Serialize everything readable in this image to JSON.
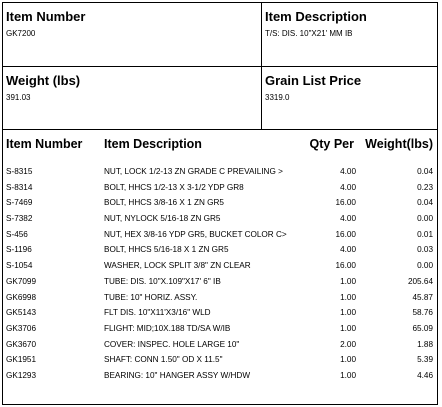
{
  "header": {
    "item_number_label": "Item Number",
    "item_number": "GK7200",
    "item_description_label": "Item Description",
    "item_description": "T/S: DIS. 10\"X21' MM IB",
    "weight_label": "Weight (lbs)",
    "weight": "391.03",
    "grain_list_price_label": "Grain List Price",
    "grain_list_price": "3319.0"
  },
  "table": {
    "columns": [
      "Item Number",
      "Item Description",
      "Qty Per",
      "Weight(lbs)"
    ],
    "rows": [
      {
        "item": "S-8315",
        "desc": "NUT, LOCK 1/2-13 ZN GRADE C PREVAILING >",
        "qty": "4.00",
        "weight": "0.04"
      },
      {
        "item": "S-8314",
        "desc": "BOLT, HHCS 1/2-13 X 3-1/2 YDP GR8",
        "qty": "4.00",
        "weight": "0.23"
      },
      {
        "item": "S-7469",
        "desc": "BOLT, HHCS 3/8-16 X 1 ZN GR5",
        "qty": "16.00",
        "weight": "0.04"
      },
      {
        "item": "S-7382",
        "desc": "NUT, NYLOCK 5/16-18 ZN GR5",
        "qty": "4.00",
        "weight": "0.00"
      },
      {
        "item": "S-456",
        "desc": "NUT, HEX 3/8-16 YDP GR5, BUCKET COLOR C>",
        "qty": "16.00",
        "weight": "0.01"
      },
      {
        "item": "S-1196",
        "desc": "BOLT, HHCS 5/16-18 X 1 ZN GR5",
        "qty": "4.00",
        "weight": "0.03"
      },
      {
        "item": "S-1054",
        "desc": "WASHER, LOCK SPLIT 3/8\" ZN CLEAR",
        "qty": "16.00",
        "weight": "0.00"
      },
      {
        "item": "GK7099",
        "desc": "TUBE: DIS. 10\"X.109\"X17' 6\" IB",
        "qty": "1.00",
        "weight": "205.64"
      },
      {
        "item": "GK6998",
        "desc": "TUBE: 10\" HORIZ. ASSY.",
        "qty": "1.00",
        "weight": "45.87"
      },
      {
        "item": "GK5143",
        "desc": "FLT DIS. 10\"X11'X3/16\" WLD",
        "qty": "1.00",
        "weight": "58.76"
      },
      {
        "item": "GK3706",
        "desc": "FLIGHT: MID;10X.188 TD/SA W/IB",
        "qty": "1.00",
        "weight": "65.09"
      },
      {
        "item": "GK3670",
        "desc": "COVER: INSPEC. HOLE LARGE 10\"",
        "qty": "2.00",
        "weight": "1.88"
      },
      {
        "item": "GK1951",
        "desc": "SHAFT: CONN 1.50\" OD X 11.5\"",
        "qty": "1.00",
        "weight": "5.39"
      },
      {
        "item": "GK1293",
        "desc": "BEARING: 10\" HANGER ASSY W/HDW",
        "qty": "1.00",
        "weight": "4.46"
      }
    ]
  }
}
